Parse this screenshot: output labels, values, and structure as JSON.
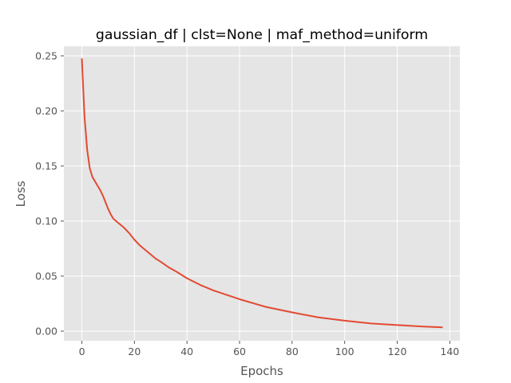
{
  "chart_data": {
    "type": "line",
    "title": "gaussian_df | clst=None | maf_method=uniform",
    "xlabel": "Epochs",
    "ylabel": "Loss",
    "xlim": [
      -6.85,
      143.85
    ],
    "ylim": [
      -0.0087,
      0.2587
    ],
    "xticks": [
      0,
      20,
      40,
      60,
      80,
      100,
      120,
      140
    ],
    "yticks": [
      0.0,
      0.05,
      0.1,
      0.15,
      0.2,
      0.25
    ],
    "xtick_labels": [
      "0",
      "20",
      "40",
      "60",
      "80",
      "100",
      "120",
      "140"
    ],
    "ytick_labels": [
      "0.00",
      "0.05",
      "0.10",
      "0.15",
      "0.20",
      "0.25"
    ],
    "grid": true,
    "style": "ggplot",
    "colors": {
      "line": "#E24A33",
      "background": "#E5E5E5",
      "grid": "#FFFFFF",
      "tick": "#555555"
    },
    "series": [
      {
        "x": [
          0,
          1,
          2,
          3,
          4,
          5,
          6,
          7,
          8,
          9,
          10,
          11,
          12,
          14,
          16,
          18,
          20,
          22,
          25,
          28,
          30,
          33,
          36,
          40,
          45,
          50,
          55,
          60,
          70,
          80,
          90,
          100,
          110,
          120,
          130,
          137
        ],
        "values": [
          0.247,
          0.195,
          0.165,
          0.148,
          0.14,
          0.136,
          0.132,
          0.128,
          0.123,
          0.117,
          0.111,
          0.106,
          0.102,
          0.098,
          0.094,
          0.089,
          0.083,
          0.078,
          0.072,
          0.066,
          0.063,
          0.058,
          0.054,
          0.048,
          0.042,
          0.037,
          0.033,
          0.029,
          0.022,
          0.017,
          0.0125,
          0.0095,
          0.007,
          0.0055,
          0.0042,
          0.0035
        ]
      }
    ]
  }
}
